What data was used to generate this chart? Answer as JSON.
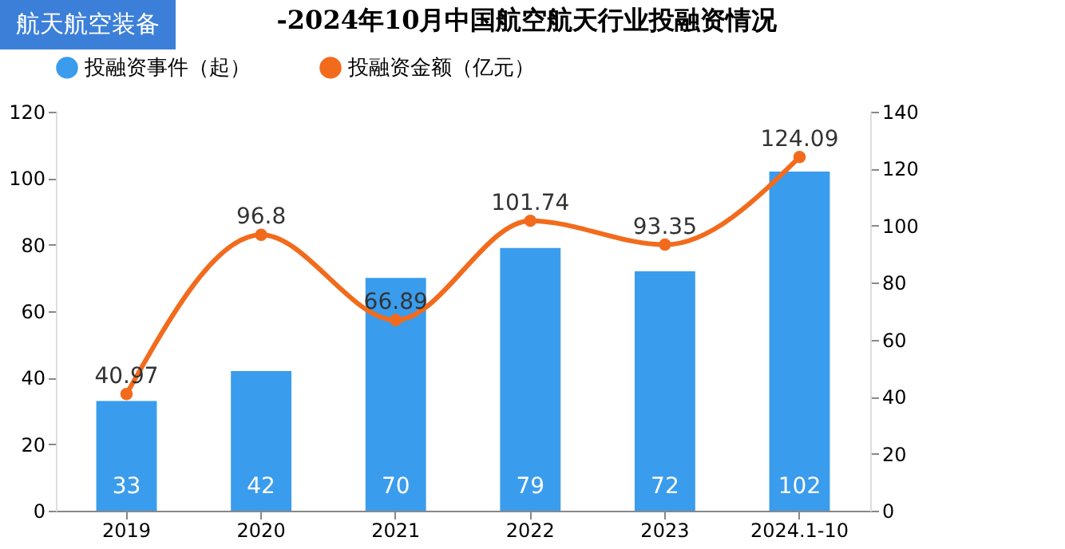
{
  "chart_data": {
    "type": "bar",
    "title": "-2024年10月中国航空航天行业投融资情况",
    "annotations": [
      "航天航空装备"
    ],
    "categories": [
      "2019",
      "2020",
      "2021",
      "2022",
      "2023",
      "2024.1-10"
    ],
    "series": [
      {
        "name": "投融资事件（起）",
        "color": "#3a9cec",
        "values": [
          33,
          42,
          70,
          79,
          72,
          102
        ]
      },
      {
        "name": "投融资金额（亿元）",
        "type": "line",
        "axis": "y2",
        "color": "#f26b1d",
        "values": [
          40.97,
          96.8,
          66.89,
          101.74,
          93.35,
          124.09
        ]
      }
    ],
    "ylim": [
      0,
      120
    ],
    "yticks": [
      0,
      20,
      40,
      60,
      80,
      100,
      120
    ],
    "y2lim": [
      0,
      140
    ],
    "y2ticks": [
      0,
      20,
      40,
      60,
      80,
      100,
      120,
      140
    ],
    "data_labels": true,
    "legend": "top",
    "marker": "circle",
    "grid": false
  }
}
